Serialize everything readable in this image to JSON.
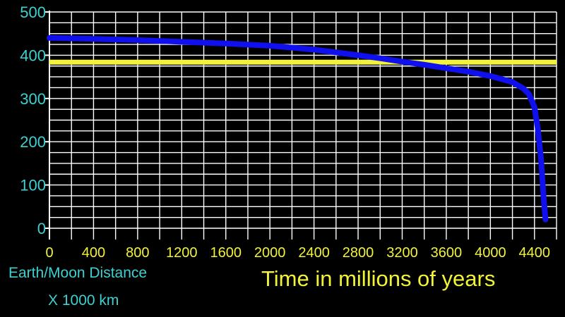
{
  "chart_data": {
    "type": "line",
    "title": "",
    "xlabel": "Time in millions of years",
    "ylabel_lines": [
      "Earth/Moon Distance",
      "X 1000 km"
    ],
    "xlim": [
      0,
      4600
    ],
    "ylim": [
      0,
      500
    ],
    "x_ticks": [
      "0",
      "400",
      "800",
      "1200",
      "1600",
      "2000",
      "2400",
      "2800",
      "3200",
      "3600",
      "4000",
      "4400"
    ],
    "y_ticks": [
      "0",
      "100",
      "200",
      "300",
      "400",
      "500"
    ],
    "grid": true,
    "series": [
      {
        "color": "#1010ee",
        "x": [
          0,
          400,
          800,
          1200,
          1600,
          2000,
          2400,
          2800,
          3000,
          3200,
          3400,
          3600,
          3800,
          4000,
          4200,
          4300,
          4350,
          4400,
          4430,
          4460,
          4480,
          4500
        ],
        "y": [
          440,
          438,
          435,
          431,
          427,
          422,
          413,
          400,
          393,
          385,
          378,
          370,
          362,
          352,
          338,
          323,
          310,
          280,
          230,
          160,
          80,
          20
        ]
      }
    ],
    "reference_line": {
      "y": 384,
      "color": "#f2f23a"
    }
  },
  "colors": {
    "background": "#000000",
    "grid": "#ffffff",
    "y_tick_text": "#3fd0d0",
    "x_tick_text": "#f2f23a"
  }
}
